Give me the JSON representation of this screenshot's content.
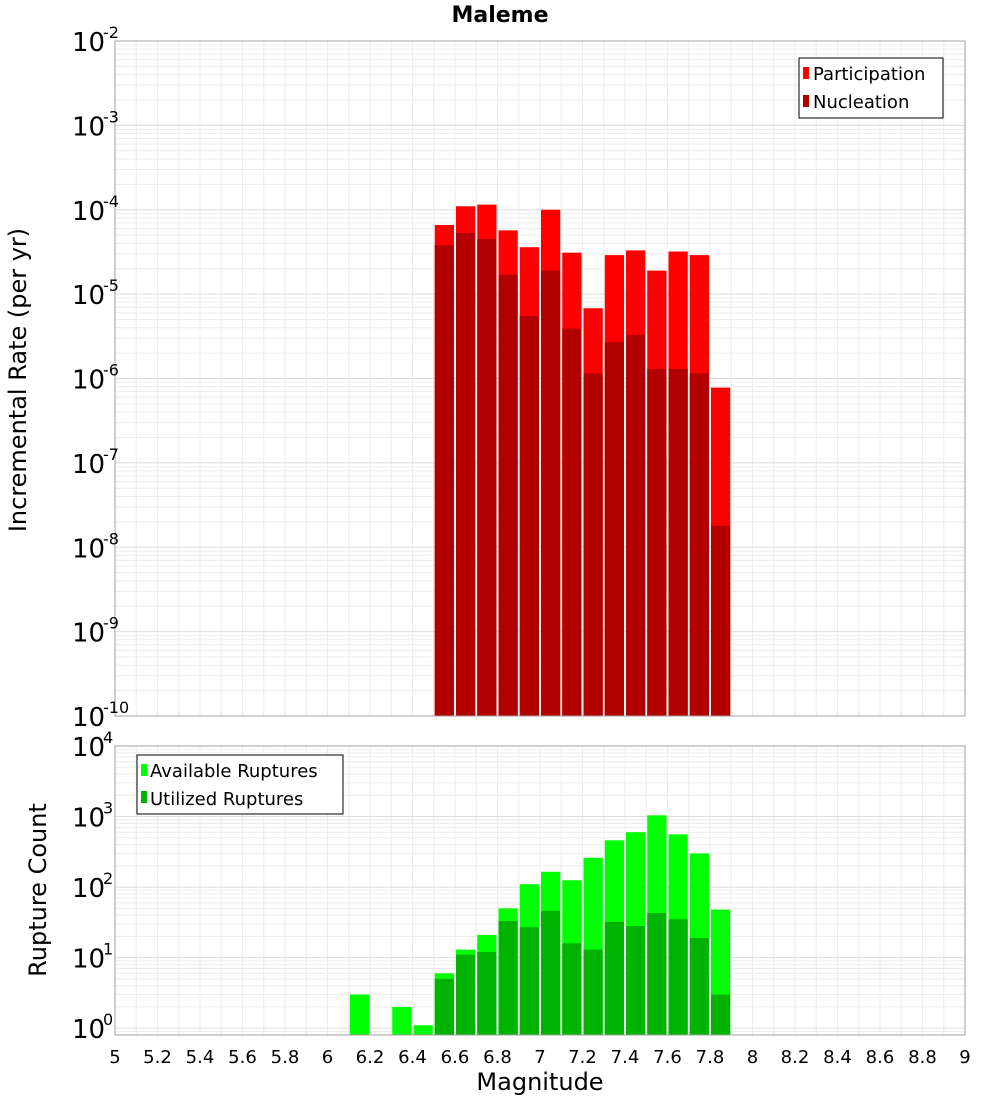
{
  "chart_data": [
    {
      "type": "bar",
      "title": "Maleme",
      "xlabel": "",
      "ylabel": "Incremental Rate (per yr)",
      "xlim": [
        5,
        9
      ],
      "ylim": [
        1e-10,
        0.01
      ],
      "yscale": "log",
      "grid": true,
      "legend_position": "top-right",
      "x": [
        6.55,
        6.65,
        6.75,
        6.85,
        6.95,
        7.05,
        7.15,
        7.25,
        7.35,
        7.45,
        7.55,
        7.65,
        7.75,
        7.85
      ],
      "series": [
        {
          "name": "Participation",
          "color": "#ff0000",
          "values": [
            6.6e-05,
            0.00011,
            0.000115,
            5.7e-05,
            3.6e-05,
            0.0001,
            3.1e-05,
            6.8e-06,
            2.9e-05,
            3.3e-05,
            1.9e-05,
            3.2e-05,
            2.9e-05,
            7.8e-07
          ]
        },
        {
          "name": "Nucleation",
          "color": "#b20000",
          "values": [
            3.8e-05,
            5.3e-05,
            4.5e-05,
            1.7e-05,
            5.5e-06,
            1.9e-05,
            3.9e-06,
            1.15e-06,
            2.7e-06,
            3.3e-06,
            1.3e-06,
            1.3e-06,
            1.15e-06,
            1.8e-08
          ]
        }
      ]
    },
    {
      "type": "bar",
      "title": "",
      "xlabel": "Magnitude",
      "ylabel": "Rupture Count",
      "xlim": [
        5,
        9
      ],
      "ylim": [
        0.8,
        10000.0
      ],
      "yscale": "log",
      "grid": true,
      "legend_position": "top-left",
      "x": [
        6.15,
        6.35,
        6.45,
        6.55,
        6.65,
        6.75,
        6.85,
        6.95,
        7.05,
        7.15,
        7.25,
        7.35,
        7.45,
        7.55,
        7.65,
        7.75,
        7.85
      ],
      "series": [
        {
          "name": "Available Ruptures",
          "color": "#00ff00",
          "values": [
            3,
            2,
            1.1,
            6,
            13,
            21,
            50,
            110,
            165,
            125,
            260,
            460,
            600,
            1040,
            560,
            300,
            48
          ]
        },
        {
          "name": "Utilized Ruptures",
          "color": "#00b300",
          "values": [
            null,
            null,
            null,
            5,
            11,
            12,
            33,
            27,
            46,
            16,
            13,
            32,
            28,
            43,
            35,
            19,
            3
          ]
        }
      ]
    }
  ],
  "x_ticks": [
    "5",
    "5.2",
    "5.4",
    "5.6",
    "5.8",
    "6",
    "6.2",
    "6.4",
    "6.6",
    "6.8",
    "7",
    "7.2",
    "7.4",
    "7.6",
    "7.8",
    "8",
    "8.2",
    "8.4",
    "8.6",
    "8.8",
    "9"
  ],
  "top_y_ticks": [
    "-10",
    "-9",
    "-8",
    "-7",
    "-6",
    "-5",
    "-4",
    "-3",
    "-2"
  ],
  "bottom_y_ticks": [
    "0",
    "1",
    "2",
    "3",
    "4"
  ],
  "tick_base": "10"
}
